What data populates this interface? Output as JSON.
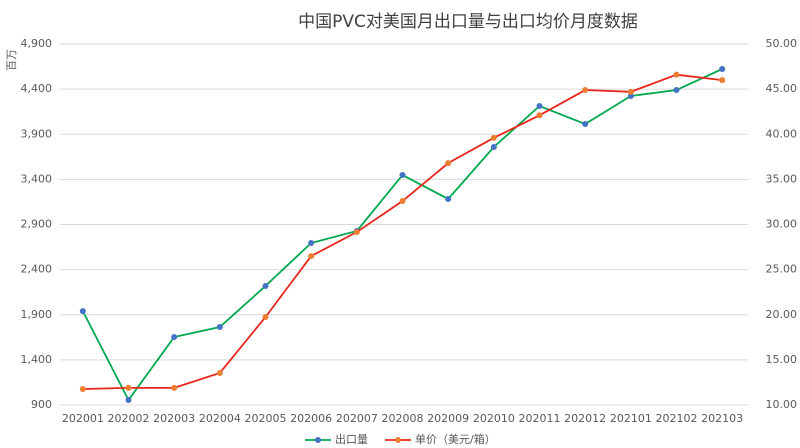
{
  "chart_data": {
    "type": "line",
    "title": "中国PVC对美国月出口量与出口均价月度数据",
    "y_label": "百万",
    "categories": [
      "202001",
      "202002",
      "202003",
      "202004",
      "202005",
      "202006",
      "202007",
      "202008",
      "202009",
      "202010",
      "202011",
      "202012",
      "202101",
      "202102",
      "202103"
    ],
    "series": [
      {
        "name": "出口量",
        "color": "#00a84f",
        "marker_color": "#4472c4",
        "values": [
          1940,
          955,
          1653,
          1764,
          2219,
          2695,
          2828,
          3448,
          3183,
          3759,
          4213,
          4014,
          4324,
          4390,
          4623
        ]
      },
      {
        "name": "单价（美元/箱）",
        "color": "#e8261c",
        "marker_color": "#ed7d31",
        "axis": "y2",
        "values": [
          11.77,
          11.9,
          11.9,
          13.55,
          19.75,
          26.5,
          29.17,
          32.6,
          36.8,
          39.6,
          42.1,
          44.9,
          44.7,
          46.6,
          46.0
        ]
      }
    ],
    "ylim": [
      900,
      4900
    ],
    "yticks": [
      {
        "value": 900,
        "label": "900"
      },
      {
        "value": 1400,
        "label": "1,400"
      },
      {
        "value": 1900,
        "label": "1,900"
      },
      {
        "value": 2400,
        "label": "2,400"
      },
      {
        "value": 2900,
        "label": "2,900"
      },
      {
        "value": 3400,
        "label": "3,400"
      },
      {
        "value": 3900,
        "label": "3,900"
      },
      {
        "value": 4400,
        "label": "4,400"
      },
      {
        "value": 4900,
        "label": "4,900"
      }
    ],
    "y2lim": [
      10,
      50
    ],
    "y2ticks": [
      {
        "value": 10,
        "label": "10.00"
      },
      {
        "value": 15,
        "label": "15.00"
      },
      {
        "value": 20,
        "label": "20.00"
      },
      {
        "value": 25,
        "label": "25.00"
      },
      {
        "value": 30,
        "label": "30.00"
      },
      {
        "value": 35,
        "label": "35.00"
      },
      {
        "value": 40,
        "label": "40.00"
      },
      {
        "value": 45,
        "label": "45.00"
      },
      {
        "value": 50,
        "label": "50.00"
      }
    ],
    "legend": "bottom"
  }
}
